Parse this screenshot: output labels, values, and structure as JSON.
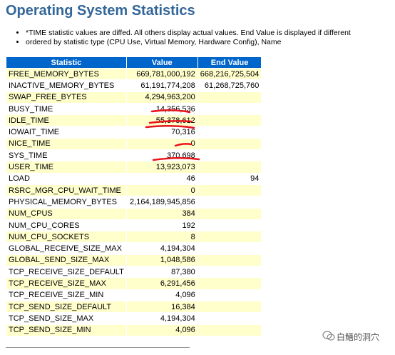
{
  "header": {
    "title": "Operating System Statistics"
  },
  "notes": [
    "*TIME statistic values are diffed. All others display actual values. End Value is displayed if different",
    "ordered by statistic type (CPU Use, Virtual Memory, Hardware Config), Name"
  ],
  "table": {
    "columns": [
      "Statistic",
      "Value",
      "End Value"
    ],
    "rows": [
      {
        "statistic": "FREE_MEMORY_BYTES",
        "value": "669,781,000,192",
        "end_value": "668,216,725,504"
      },
      {
        "statistic": "INACTIVE_MEMORY_BYTES",
        "value": "61,191,774,208",
        "end_value": "61,268,725,760"
      },
      {
        "statistic": "SWAP_FREE_BYTES",
        "value": "4,294,963,200"
      },
      {
        "statistic": "BUSY_TIME",
        "value": "14,356,536"
      },
      {
        "statistic": "IDLE_TIME",
        "value": "55,378,612"
      },
      {
        "statistic": "IOWAIT_TIME",
        "value": "70,316"
      },
      {
        "statistic": "NICE_TIME",
        "value": "0"
      },
      {
        "statistic": "SYS_TIME",
        "value": "370,698"
      },
      {
        "statistic": "USER_TIME",
        "value": "13,923,073"
      },
      {
        "statistic": "LOAD",
        "value": "46",
        "end_value": "94"
      },
      {
        "statistic": "RSRC_MGR_CPU_WAIT_TIME",
        "value": "0"
      },
      {
        "statistic": "PHYSICAL_MEMORY_BYTES",
        "value": "2,164,189,945,856"
      },
      {
        "statistic": "NUM_CPUS",
        "value": "384"
      },
      {
        "statistic": "NUM_CPU_CORES",
        "value": "192"
      },
      {
        "statistic": "NUM_CPU_SOCKETS",
        "value": "8"
      },
      {
        "statistic": "GLOBAL_RECEIVE_SIZE_MAX",
        "value": "4,194,304"
      },
      {
        "statistic": "GLOBAL_SEND_SIZE_MAX",
        "value": "1,048,586"
      },
      {
        "statistic": "TCP_RECEIVE_SIZE_DEFAULT",
        "value": "87,380"
      },
      {
        "statistic": "TCP_RECEIVE_SIZE_MAX",
        "value": "6,291,456"
      },
      {
        "statistic": "TCP_RECEIVE_SIZE_MIN",
        "value": "4,096"
      },
      {
        "statistic": "TCP_SEND_SIZE_DEFAULT",
        "value": "16,384"
      },
      {
        "statistic": "TCP_SEND_SIZE_MAX",
        "value": "4,194,304"
      },
      {
        "statistic": "TCP_SEND_SIZE_MIN",
        "value": "4,096"
      }
    ]
  },
  "watermark": "白鳝的洞穴"
}
